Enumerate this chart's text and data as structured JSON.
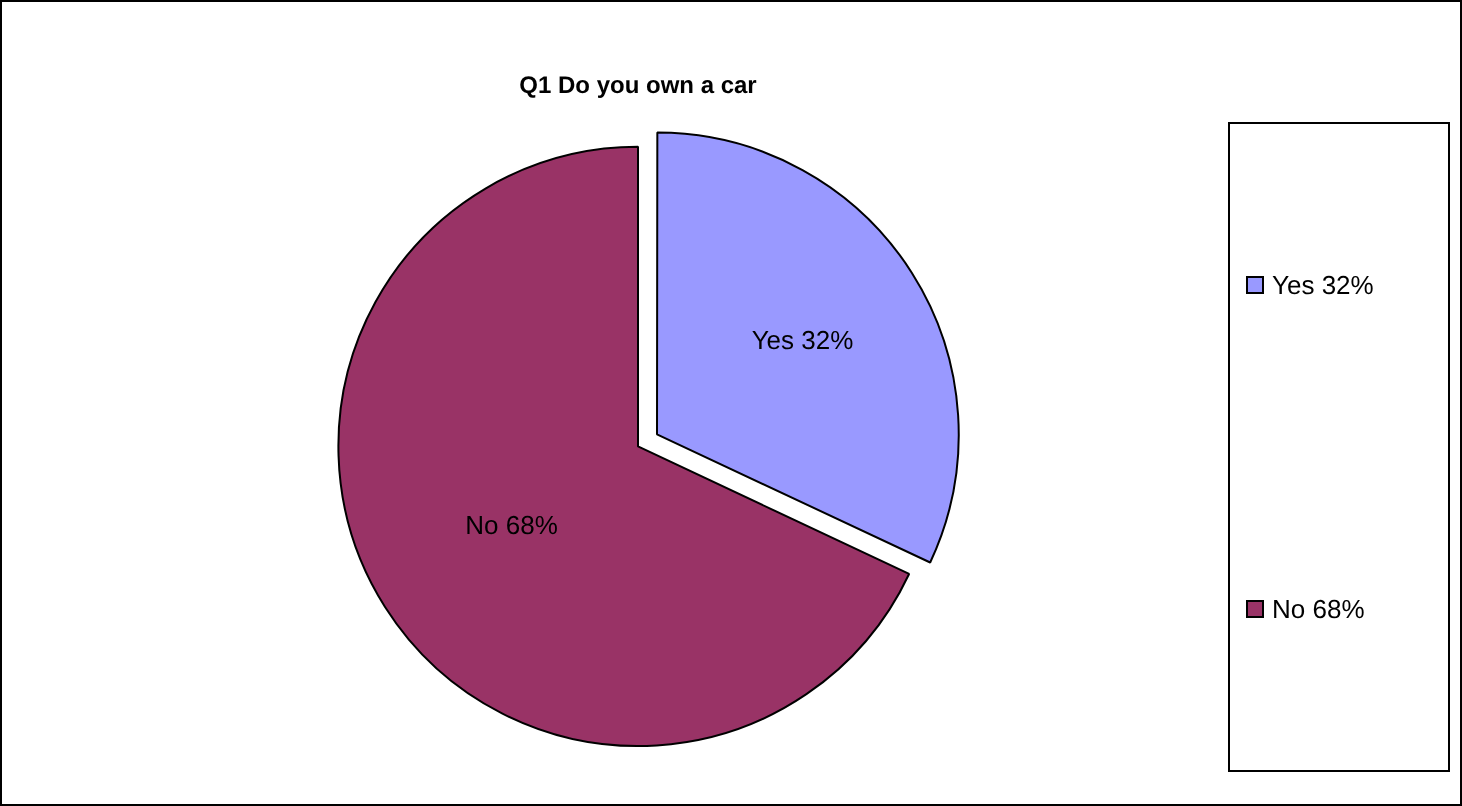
{
  "chart_data": {
    "type": "pie",
    "title": "Q1 Do you own a car",
    "categories": [
      "Yes 32%",
      "No 68%"
    ],
    "values": [
      32,
      68
    ],
    "value_labels": [
      "Yes 32%",
      "No 68%"
    ],
    "colors": [
      "#9999ff",
      "#993366"
    ],
    "legend": "right"
  }
}
